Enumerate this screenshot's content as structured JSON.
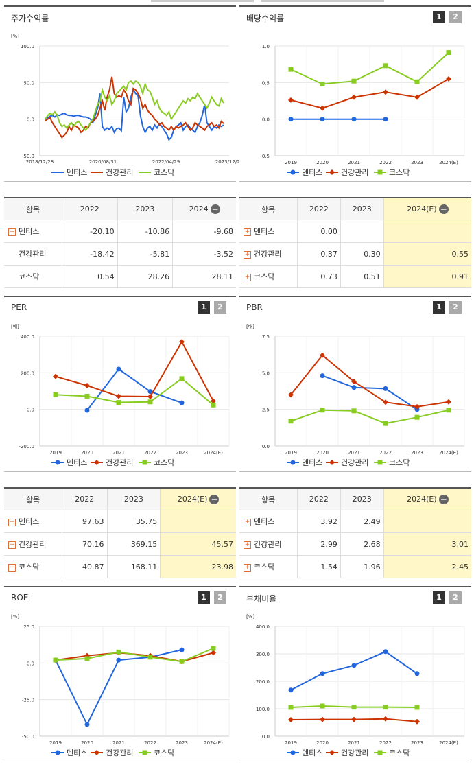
{
  "colors": {
    "dentis": "#2266dd",
    "health": "#cc3300",
    "kosdaq": "#88cc22"
  },
  "legend": [
    "덴티스",
    "건강관리",
    "코스닥"
  ],
  "panels": {
    "stock": {
      "title": "주가수익률"
    },
    "dividend": {
      "title": "배당수익률"
    },
    "per": {
      "title": "PER"
    },
    "pbr": {
      "title": "PBR"
    },
    "roe": {
      "title": "ROE"
    },
    "debt": {
      "title": "부채비율"
    }
  },
  "page_buttons": [
    "1",
    "2"
  ],
  "stock_table": {
    "header": [
      "항목",
      "2022",
      "2023",
      "2024"
    ],
    "rows": [
      {
        "name": "덴티스",
        "plus": true,
        "values": [
          "-20.10",
          "-10.86",
          "-9.68"
        ]
      },
      {
        "name": "건강관리",
        "plus": false,
        "values": [
          "-18.42",
          "-5.81",
          "-3.52"
        ]
      },
      {
        "name": "코스닥",
        "plus": false,
        "values": [
          "0.54",
          "28.26",
          "28.11"
        ]
      }
    ]
  },
  "dividend_table": {
    "header": [
      "항목",
      "2022",
      "2023",
      "2024(E)"
    ],
    "rows": [
      {
        "name": "덴티스",
        "values": [
          "0.00",
          "",
          ""
        ]
      },
      {
        "name": "건강관리",
        "values": [
          "0.37",
          "0.30",
          "0.55"
        ]
      },
      {
        "name": "코스닥",
        "values": [
          "0.73",
          "0.51",
          "0.91"
        ]
      }
    ]
  },
  "per_table": {
    "header": [
      "항목",
      "2022",
      "2023",
      "2024(E)"
    ],
    "rows": [
      {
        "name": "덴티스",
        "values": [
          "97.63",
          "35.75",
          ""
        ]
      },
      {
        "name": "건강관리",
        "values": [
          "70.16",
          "369.15",
          "45.57"
        ]
      },
      {
        "name": "코스닥",
        "values": [
          "40.87",
          "168.11",
          "23.98"
        ]
      }
    ]
  },
  "pbr_table": {
    "header": [
      "항목",
      "2022",
      "2023",
      "2024(E)"
    ],
    "rows": [
      {
        "name": "덴티스",
        "values": [
          "3.92",
          "2.49",
          ""
        ]
      },
      {
        "name": "건강관리",
        "values": [
          "2.99",
          "2.68",
          "3.01"
        ]
      },
      {
        "name": "코스닥",
        "values": [
          "1.54",
          "1.96",
          "2.45"
        ]
      }
    ]
  },
  "chart_data": [
    {
      "id": "stock",
      "type": "line",
      "title": "주가수익률",
      "unit": "[%]",
      "ylim": [
        -50,
        100
      ],
      "yticks": [
        "100.0",
        "50.0",
        "0.0",
        "-50.0"
      ],
      "xticks": [
        "2018/12/28",
        "2020/08/31",
        "2022/04/29",
        "2023/12/28"
      ],
      "series": [
        {
          "name": "덴티스",
          "values": [
            0,
            2,
            4,
            5,
            3,
            6,
            5,
            7,
            8,
            6,
            5,
            5,
            4,
            5,
            5,
            4,
            3,
            3,
            2,
            0,
            -5,
            5,
            15,
            35,
            -10,
            -15,
            -12,
            -14,
            -10,
            -18,
            -13,
            -12,
            -16,
            30,
            10,
            15,
            30,
            40,
            35,
            32,
            5,
            -10,
            -18,
            -12,
            -10,
            -15,
            -8,
            -12,
            -6,
            -10,
            -15,
            -20,
            -28,
            -25,
            -15,
            -10,
            -8,
            -5,
            -15,
            -10,
            -8,
            -12,
            -15,
            -18,
            -10,
            -5,
            5,
            20,
            -5,
            -10,
            -15,
            -10,
            -12,
            -8,
            -10,
            -8
          ]
        },
        {
          "name": "건강관리",
          "values": [
            -2,
            0,
            2,
            -5,
            -10,
            -15,
            -20,
            -25,
            -22,
            -18,
            -10,
            -15,
            -8,
            -10,
            -12,
            -18,
            -15,
            -10,
            -12,
            -5,
            -3,
            0,
            5,
            15,
            25,
            12,
            30,
            40,
            58,
            35,
            30,
            32,
            30,
            40,
            35,
            25,
            20,
            42,
            40,
            35,
            28,
            15,
            20,
            12,
            8,
            5,
            0,
            -3,
            -8,
            -5,
            -10,
            -12,
            -15,
            -10,
            -15,
            -10,
            -12,
            -10,
            -8,
            -5,
            -10,
            -15,
            -12,
            -5,
            -8,
            -10,
            -12,
            -15,
            -10,
            -8,
            -5,
            -10,
            -8,
            -12,
            -3,
            -6
          ]
        },
        {
          "name": "코스닥",
          "values": [
            0,
            5,
            8,
            6,
            10,
            5,
            -5,
            -10,
            -8,
            -12,
            -8,
            -5,
            -10,
            -5,
            -3,
            -8,
            -12,
            -15,
            -10,
            -5,
            0,
            10,
            20,
            25,
            40,
            30,
            25,
            32,
            20,
            25,
            35,
            38,
            42,
            45,
            40,
            50,
            52,
            48,
            52,
            50,
            45,
            35,
            48,
            40,
            38,
            30,
            20,
            25,
            15,
            10,
            8,
            5,
            10,
            0,
            5,
            10,
            15,
            20,
            25,
            22,
            28,
            25,
            30,
            28,
            35,
            30,
            25,
            20,
            15,
            22,
            30,
            25,
            20,
            18,
            28,
            22
          ]
        }
      ]
    },
    {
      "id": "dividend",
      "type": "line",
      "title": "배당수익률",
      "ylim": [
        -0.5,
        1.0
      ],
      "yticks": [
        "1.0",
        "0.5",
        "0.0",
        "-0.5"
      ],
      "categories": [
        "2019",
        "2020",
        "2021",
        "2022",
        "2023",
        "2024(E)"
      ],
      "series": [
        {
          "name": "덴티스",
          "values": [
            0.0,
            0.0,
            0.0,
            0.0,
            null,
            null
          ]
        },
        {
          "name": "건강관리",
          "values": [
            0.26,
            0.15,
            0.3,
            0.37,
            0.3,
            0.55
          ]
        },
        {
          "name": "코스닥",
          "values": [
            0.68,
            0.48,
            0.52,
            0.73,
            0.51,
            0.91
          ]
        }
      ]
    },
    {
      "id": "per",
      "type": "line",
      "title": "PER",
      "unit": "[배]",
      "ylim": [
        -200,
        400
      ],
      "yticks": [
        "400.0",
        "200.0",
        "0.0",
        "-200.0"
      ],
      "categories": [
        "2019",
        "2020",
        "2021",
        "2022",
        "2023",
        "2024(E)"
      ],
      "series": [
        {
          "name": "덴티스",
          "values": [
            null,
            -5,
            220,
            97.63,
            35.75,
            null
          ]
        },
        {
          "name": "건강관리",
          "values": [
            180,
            130,
            72,
            70.16,
            369.15,
            45.57
          ]
        },
        {
          "name": "코스닥",
          "values": [
            80,
            72,
            38,
            40.87,
            168.11,
            23.98
          ]
        }
      ]
    },
    {
      "id": "pbr",
      "type": "line",
      "title": "PBR",
      "unit": "[배]",
      "ylim": [
        0,
        7.5
      ],
      "yticks": [
        "7.5",
        "5.0",
        "2.5",
        "0.0"
      ],
      "categories": [
        "2019",
        "2020",
        "2021",
        "2022",
        "2023",
        "2024(E)"
      ],
      "series": [
        {
          "name": "덴티스",
          "values": [
            null,
            4.8,
            4.0,
            3.92,
            2.49,
            null
          ]
        },
        {
          "name": "건강관리",
          "values": [
            3.5,
            6.2,
            4.4,
            2.99,
            2.68,
            3.01
          ]
        },
        {
          "name": "코스닥",
          "values": [
            1.7,
            2.45,
            2.4,
            1.54,
            1.96,
            2.45
          ]
        }
      ]
    },
    {
      "id": "roe",
      "type": "line",
      "title": "ROE",
      "unit": "[%]",
      "ylim": [
        -50,
        25
      ],
      "yticks": [
        "25.0",
        "0.0",
        "-25.0",
        "-50.0"
      ],
      "categories": [
        "2019",
        "2020",
        "2021",
        "2022",
        "2023",
        "2024(E)"
      ],
      "series": [
        {
          "name": "덴티스",
          "values": [
            2,
            -42,
            2,
            4,
            9,
            null
          ]
        },
        {
          "name": "건강관리",
          "values": [
            2,
            5,
            7,
            5,
            1,
            7
          ]
        },
        {
          "name": "코스닥",
          "values": [
            2,
            3,
            7.5,
            4,
            1,
            10
          ]
        }
      ]
    },
    {
      "id": "debt",
      "type": "line",
      "title": "부채비율",
      "unit": "[%]",
      "ylim": [
        0,
        400
      ],
      "yticks": [
        "400.0",
        "300.0",
        "200.0",
        "100.0",
        "0.0"
      ],
      "categories": [
        "2019",
        "2020",
        "2021",
        "2022",
        "2023",
        "2024(E)"
      ],
      "series": [
        {
          "name": "덴티스",
          "values": [
            168,
            228,
            258,
            308,
            228,
            null
          ]
        },
        {
          "name": "건강관리",
          "values": [
            60,
            61,
            61,
            63,
            53,
            null
          ]
        },
        {
          "name": "코스닥",
          "values": [
            105,
            110,
            106,
            106,
            105,
            null
          ]
        }
      ]
    }
  ]
}
